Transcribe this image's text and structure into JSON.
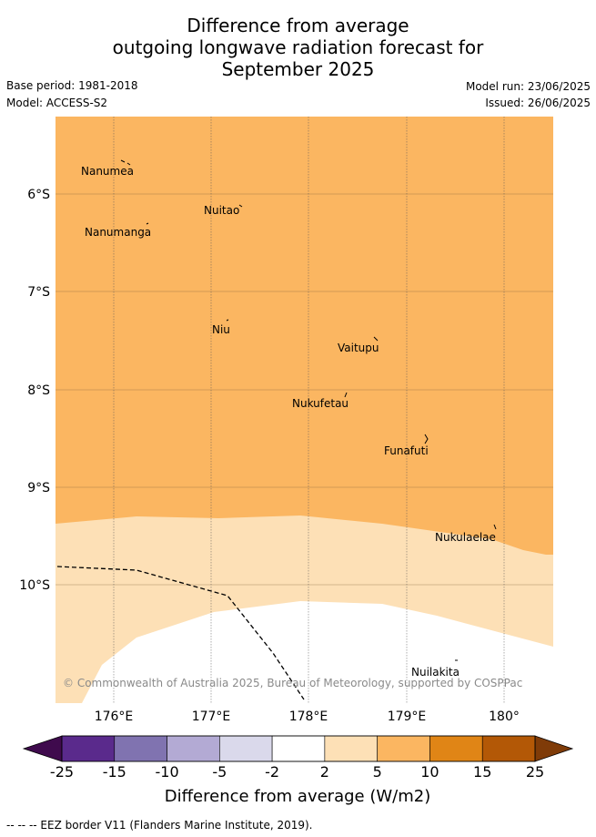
{
  "title": {
    "line1": "Difference from average",
    "line2": "outgoing longwave radiation forecast for",
    "line3": "September 2025"
  },
  "meta": {
    "base_period": "Base period: 1981-2018",
    "model": "Model: ACCESS-S2",
    "model_run": "Model run: 23/06/2025",
    "issued": "Issued: 26/06/2025"
  },
  "map": {
    "lon_ticks": [
      "176°E",
      "177°E",
      "178°E",
      "179°E",
      "180°"
    ],
    "lat_ticks": [
      "6°S",
      "7°S",
      "8°S",
      "9°S",
      "10°S"
    ],
    "places": {
      "nanumea": "Nanumea",
      "nuitao": "Nuitao",
      "nanumanga": "Nanumanga",
      "niu": "Niu",
      "vaitupu": "Vaitupu",
      "nukufetau": "Nukufetau",
      "funafuti": "Funafuti",
      "nukulaelae": "Nukulaelae",
      "nuilakita": "Nuilakita"
    },
    "copyright": "© Commonwealth of Australia 2025, Bureau of Meteorology, supported by COSPPac",
    "colors": {
      "band_5_10": "#fbb661",
      "band_2_5": "#fde0b6",
      "band_-2_2": "#ffffff"
    }
  },
  "colorbar": {
    "labels": [
      "-25",
      "-15",
      "-10",
      "-5",
      "-2",
      "2",
      "5",
      "10",
      "15",
      "25"
    ],
    "colors": [
      "#3f0a4d",
      "#5a2a8c",
      "#8073b0",
      "#b3aad4",
      "#dad9eb",
      "#ffffff",
      "#fde0b6",
      "#fbb661",
      "#e08516",
      "#b35806",
      "#7f3b08"
    ],
    "title": "Difference from average (W/m2)"
  },
  "footer": "--  --  -- EEZ border V11 (Flanders Marine Institute, 2019)."
}
